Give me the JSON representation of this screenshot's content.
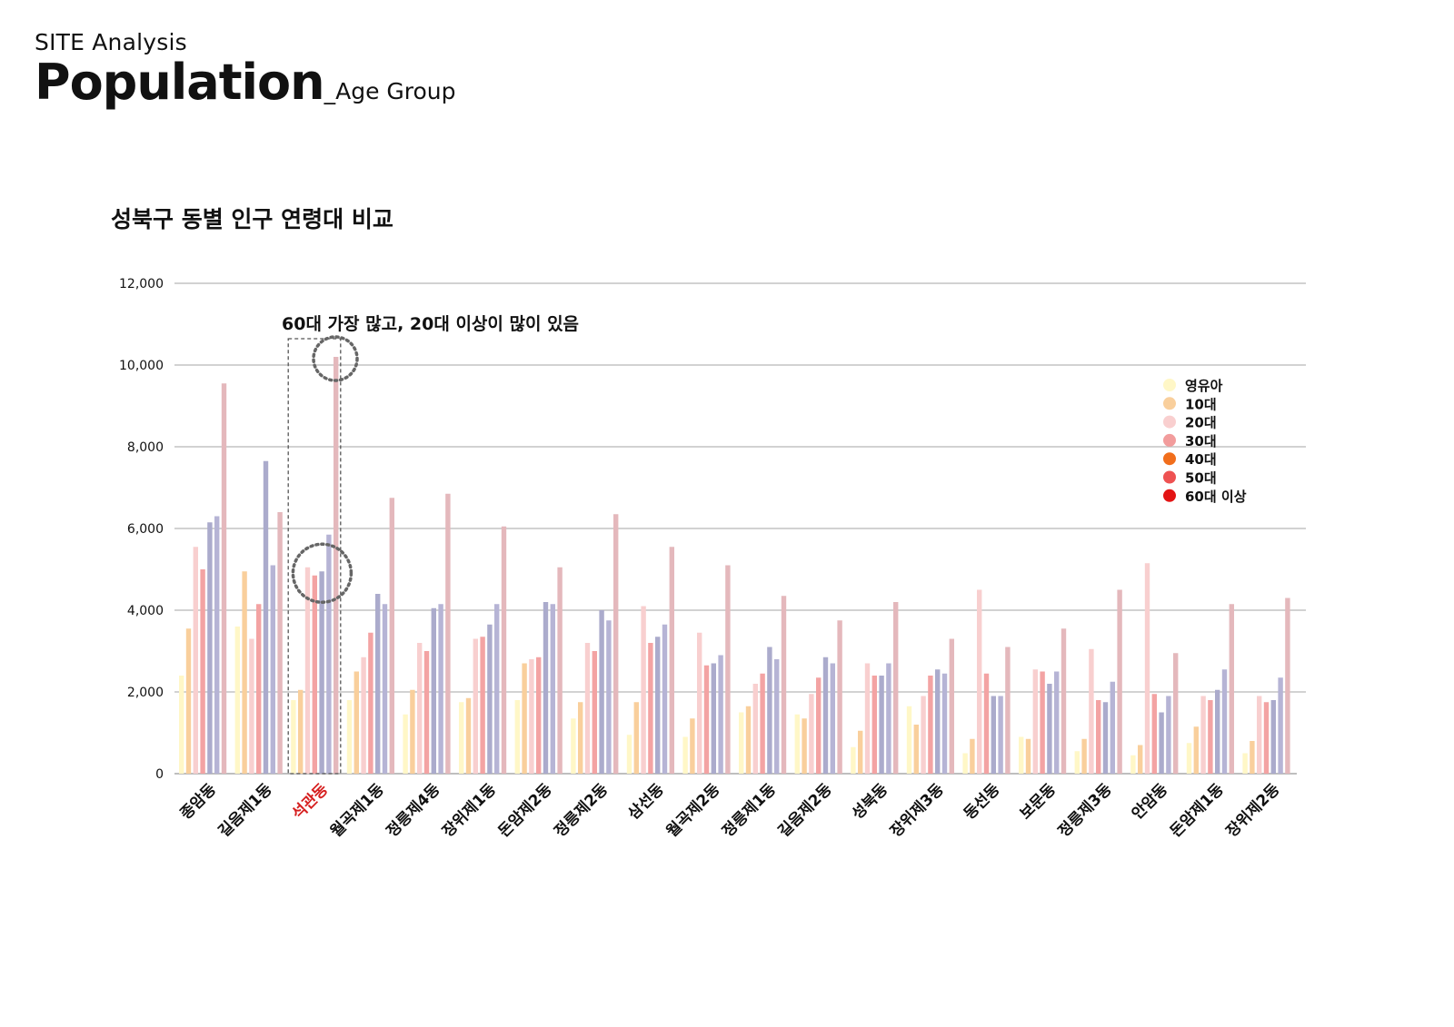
{
  "header": {
    "kicker": "SITE Analysis",
    "title": "Population",
    "subtitle": "_Age Group"
  },
  "chart_data": {
    "type": "bar",
    "title": "성북구 동별 인구 연령대 비교",
    "annotation": "60대 가장 많고, 20대 이상이 많이 있음",
    "highlight_category": "석관동",
    "highlight_color": "#d62020",
    "ylim": [
      0,
      12000
    ],
    "yticks": [
      "0",
      "2,000",
      "4,000",
      "6,000",
      "8,000",
      "10,000",
      "12,000"
    ],
    "grid": true,
    "legend_position": "right",
    "categories": [
      "종암동",
      "길음제1동",
      "석관동",
      "월곡제1동",
      "정릉제4동",
      "장위제1동",
      "돈암제2동",
      "정릉제2동",
      "삼선동",
      "월곡제2동",
      "정릉제1동",
      "길음제2동",
      "성북동",
      "장위제3동",
      "동선동",
      "보문동",
      "정릉제3동",
      "안암동",
      "돈암제1동",
      "장위제2동"
    ],
    "series": [
      {
        "name": "영유아",
        "color": "#fff7c7",
        "values": [
          2400,
          3600,
          1800,
          1800,
          1450,
          1750,
          1800,
          1350,
          950,
          900,
          1500,
          1450,
          650,
          1650,
          500,
          900,
          550,
          450,
          750,
          500
        ]
      },
      {
        "name": "10대",
        "color": "#f9cf9c",
        "values": [
          3550,
          4950,
          2050,
          2500,
          2050,
          1850,
          2700,
          1750,
          1750,
          1350,
          1650,
          1350,
          1050,
          1200,
          850,
          850,
          850,
          700,
          1150,
          800
        ]
      },
      {
        "name": "20대",
        "color": "#f8cfcf",
        "values": [
          5550,
          3300,
          5050,
          2850,
          3200,
          3300,
          2800,
          3200,
          4100,
          3450,
          2200,
          1950,
          2700,
          1900,
          4500,
          2550,
          3050,
          5150,
          1900,
          1900
        ]
      },
      {
        "name": "30대",
        "color": "#f3a3a3",
        "values": [
          5000,
          4150,
          4850,
          3450,
          3000,
          3350,
          2850,
          3000,
          3200,
          2650,
          2450,
          2350,
          2400,
          2400,
          2450,
          2500,
          1800,
          1950,
          1800,
          1750
        ]
      },
      {
        "name": "40대",
        "color": "#ababcc",
        "values": [
          6150,
          7650,
          4950,
          4400,
          4050,
          3650,
          4200,
          4000,
          3350,
          2700,
          3100,
          2850,
          2400,
          2550,
          1900,
          2200,
          1750,
          1500,
          2050,
          1800
        ]
      },
      {
        "name": "50대",
        "color": "#b6b4d5",
        "values": [
          6300,
          5100,
          5850,
          4150,
          4150,
          4150,
          4150,
          3750,
          3650,
          2900,
          2800,
          2700,
          2700,
          2450,
          1900,
          2500,
          2250,
          1900,
          2550,
          2350
        ]
      },
      {
        "name": "60대 이상",
        "color": "#e4b8bc",
        "values": [
          9550,
          6400,
          10200,
          6750,
          6850,
          6050,
          5050,
          6350,
          5550,
          5100,
          4350,
          3750,
          4200,
          3300,
          3100,
          3550,
          4500,
          2950,
          4150,
          4300
        ]
      }
    ],
    "legend": [
      {
        "name": "영유아",
        "color": "#fff7c7"
      },
      {
        "name": "10대",
        "color": "#f9cf9c"
      },
      {
        "name": "20대",
        "color": "#f9cfcf"
      },
      {
        "name": "30대",
        "color": "#f29c9c"
      },
      {
        "name": "40대",
        "color": "#f16e1c"
      },
      {
        "name": "50대",
        "color": "#ee5252"
      },
      {
        "name": "60대 이상",
        "color": "#e31414"
      }
    ]
  }
}
